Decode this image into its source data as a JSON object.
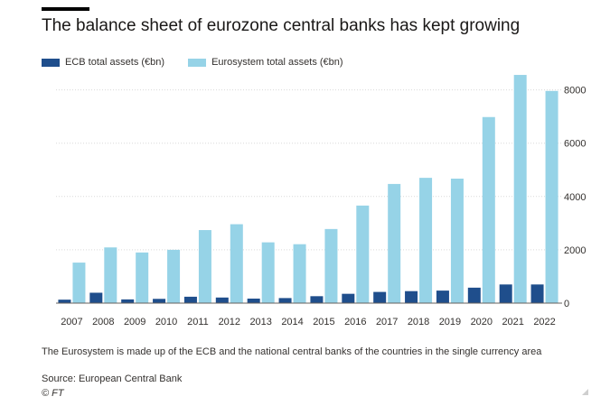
{
  "title": "The balance sheet of eurozone central banks has kept growing",
  "legend": [
    {
      "label": "ECB total assets (€bn)",
      "color": "#1f4e8c"
    },
    {
      "label": "Eurosystem total assets (€bn)",
      "color": "#96d3e7"
    }
  ],
  "chart_data": {
    "type": "bar",
    "categories": [
      "2007",
      "2008",
      "2009",
      "2010",
      "2011",
      "2012",
      "2013",
      "2014",
      "2015",
      "2016",
      "2017",
      "2018",
      "2019",
      "2020",
      "2021",
      "2022"
    ],
    "series": [
      {
        "name": "ECB total assets (€bn)",
        "color": "#1f4e8c",
        "values": [
          130,
          390,
          140,
          160,
          240,
          210,
          170,
          190,
          260,
          350,
          420,
          450,
          470,
          580,
          700,
          700
        ]
      },
      {
        "name": "Eurosystem total assets (€bn)",
        "color": "#96d3e7",
        "values": [
          1520,
          2090,
          1900,
          2000,
          2740,
          2960,
          2280,
          2210,
          2780,
          3660,
          4470,
          4700,
          4670,
          6980,
          8560,
          7960
        ]
      }
    ],
    "yticks": [
      0,
      2000,
      4000,
      6000,
      8000
    ],
    "ylim": [
      0,
      8600
    ],
    "yaxis_position": "right",
    "grid": true
  },
  "footnote": "The Eurosystem is made up of the ECB and the national central banks of the countries in the single currency area",
  "source": "Source: European Central Bank",
  "copyright": "© FT"
}
